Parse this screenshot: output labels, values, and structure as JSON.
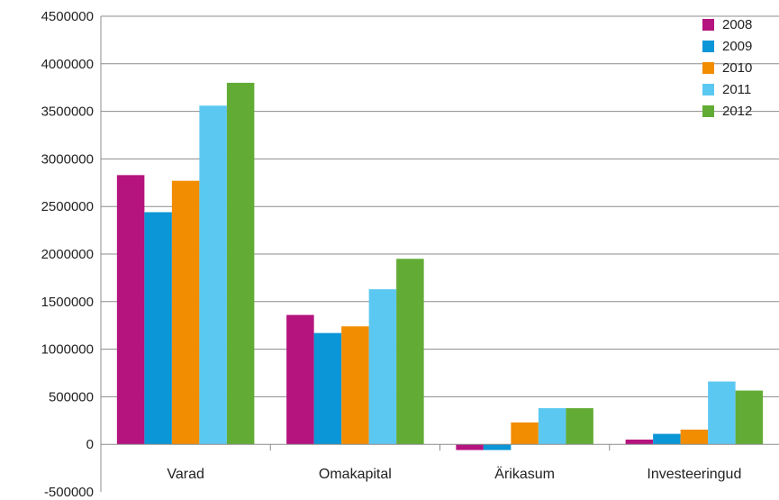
{
  "chart_data": {
    "type": "bar",
    "title": "",
    "xlabel": "",
    "ylabel": "",
    "categories": [
      "Varad",
      "Omakapital",
      "Ärikasum",
      "Investeeringud"
    ],
    "series": [
      {
        "name": "2008",
        "color": "#B5137E",
        "values": [
          2830000,
          1360000,
          -60000,
          50000
        ]
      },
      {
        "name": "2009",
        "color": "#0A96D7",
        "values": [
          2440000,
          1170000,
          -60000,
          110000
        ]
      },
      {
        "name": "2010",
        "color": "#F28C00",
        "values": [
          2770000,
          1240000,
          230000,
          155000
        ]
      },
      {
        "name": "2011",
        "color": "#5BC8F2",
        "values": [
          3560000,
          1630000,
          380000,
          660000
        ]
      },
      {
        "name": "2012",
        "color": "#62AC35",
        "values": [
          3800000,
          1950000,
          380000,
          565000
        ]
      }
    ],
    "ylim": [
      -500000,
      4500000
    ],
    "yticks": [
      -500000,
      0,
      500000,
      1000000,
      1500000,
      2000000,
      2500000,
      3000000,
      3500000,
      4000000,
      4500000
    ],
    "ytick_labels": [
      "-500000",
      "0",
      "500000",
      "1000000",
      "1500000",
      "2000000",
      "2500000",
      "3000000",
      "3500000",
      "4000000",
      "4500000"
    ],
    "grid": true,
    "legend_position": "top-right"
  }
}
